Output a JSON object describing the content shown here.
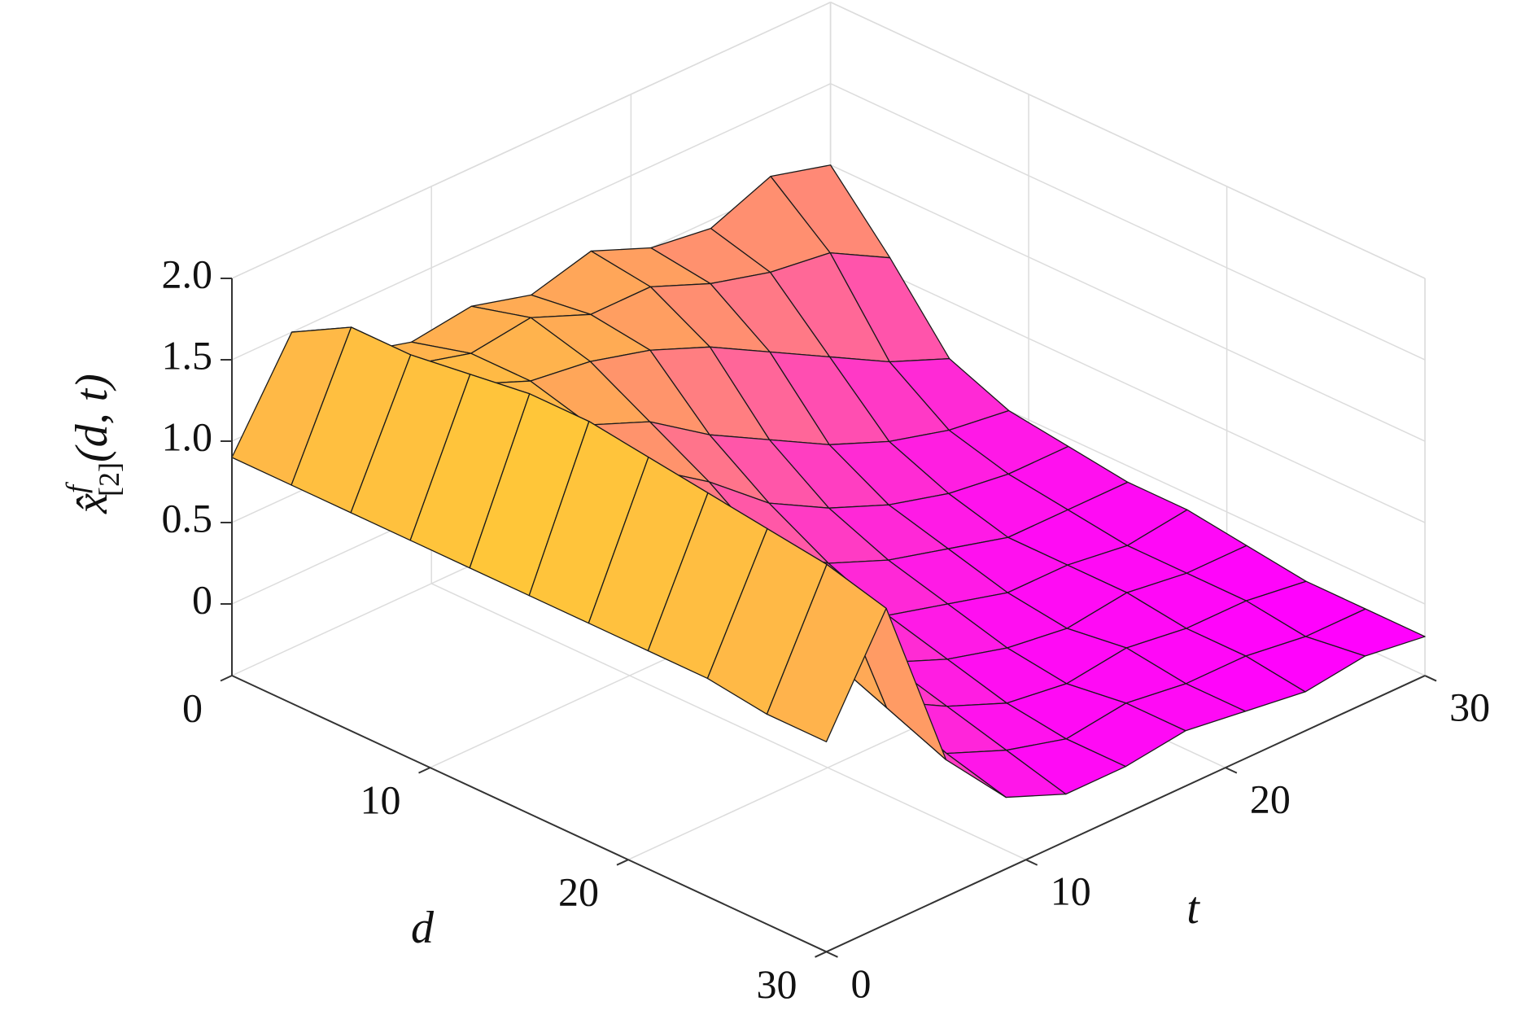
{
  "chart_data": {
    "type": "surface",
    "xlabel": "d",
    "ylabel": "t",
    "zlabel": {
      "base": "x̂",
      "sup": "f",
      "sub": "[2]",
      "args": "(d, t)"
    },
    "x": [
      0,
      3,
      6,
      9,
      12,
      15,
      18,
      21,
      24,
      27,
      30
    ],
    "y": [
      0,
      3,
      6,
      9,
      12,
      15,
      18,
      21,
      24,
      27,
      30
    ],
    "z": [
      [
        0.9,
        1.5,
        1.2,
        1.1,
        1.15,
        1.05,
        1.15,
        1.0,
        0.95,
        1.1,
        1.0
      ],
      [
        0.9,
        1.7,
        1.3,
        1.2,
        1.25,
        1.1,
        1.1,
        0.95,
        0.85,
        0.8,
        0.6
      ],
      [
        0.9,
        1.7,
        1.35,
        1.2,
        1.15,
        1.05,
        0.9,
        0.7,
        0.5,
        0.3,
        0.15
      ],
      [
        0.9,
        1.75,
        1.3,
        1.1,
        0.95,
        0.7,
        0.5,
        0.3,
        0.15,
        0.05,
        0.0
      ],
      [
        0.9,
        1.8,
        1.25,
        1.0,
        0.75,
        0.45,
        0.25,
        0.1,
        0.0,
        -0.05,
        -0.05
      ],
      [
        0.9,
        1.8,
        1.15,
        0.8,
        0.5,
        0.25,
        0.1,
        0.0,
        -0.1,
        -0.1,
        -0.1
      ],
      [
        0.9,
        1.75,
        1.0,
        0.6,
        0.3,
        0.1,
        0.0,
        -0.1,
        -0.1,
        -0.15,
        -0.1
      ],
      [
        0.9,
        1.7,
        0.85,
        0.4,
        0.15,
        0.0,
        -0.1,
        -0.15,
        -0.1,
        -0.15,
        -0.15
      ],
      [
        0.9,
        1.65,
        0.7,
        0.25,
        0.05,
        -0.1,
        -0.15,
        -0.1,
        -0.15,
        -0.15,
        -0.2
      ],
      [
        0.85,
        1.6,
        0.55,
        0.1,
        -0.05,
        -0.15,
        -0.1,
        -0.15,
        -0.15,
        -0.2,
        -0.2
      ],
      [
        0.85,
        1.5,
        0.4,
        0.0,
        -0.15,
        -0.15,
        -0.1,
        -0.15,
        -0.2,
        -0.15,
        -0.2
      ]
    ],
    "colormap": [
      "#ff00ff",
      "#ffff00"
    ],
    "edge_color": "#1a1a1a",
    "xlim": [
      0,
      30
    ],
    "ylim": [
      0,
      30
    ],
    "zlim": [
      -0.44,
      2.0
    ],
    "xticks": [
      0,
      10,
      20,
      30
    ],
    "yticks": [
      0,
      10,
      20,
      30
    ],
    "zticks": [
      0,
      0.5,
      {
        "value": 1,
        "label": "1.0"
      },
      1.5,
      {
        "value": 2,
        "label": "2.0"
      }
    ],
    "grid": true
  }
}
